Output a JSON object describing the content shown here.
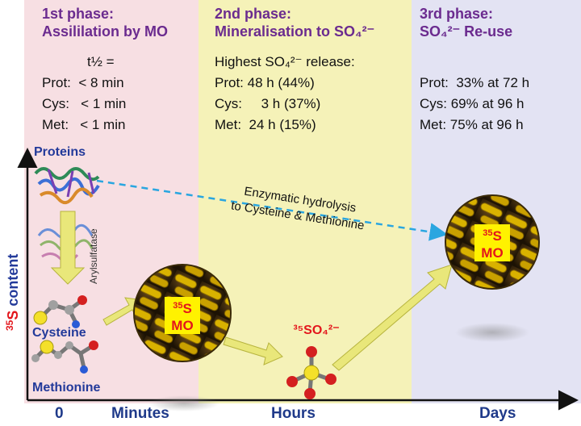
{
  "colors": {
    "phase1_bg": "#f7dfe3",
    "phase2_bg": "#f5f2b8",
    "phase3_bg": "#e3e3f3",
    "title_purple": "#6b2b8f",
    "label_blue": "#233a9a",
    "arrow_yellow": "#e9e77a",
    "hydrolysis_arrow": "#2aa6e0",
    "mo_yellow": "#fff200",
    "mo_red": "#e3161c"
  },
  "phases": [
    {
      "title_line1": "1st phase:",
      "title_line2": "Assililation by MO",
      "lines": [
        "t½ =",
        "Prot:  < 8 min",
        "Cys:   < 1 min",
        "Met:   < 1 min"
      ]
    },
    {
      "title_line1": "2nd phase:",
      "title_line2": "Mineralisation to SO₄²⁻",
      "lines": [
        "Highest SO₄²⁻ release:",
        "Prot: 48 h (44%)",
        "Cys:     3 h (37%)",
        "Met:  24 h (15%)"
      ]
    },
    {
      "title_line1": "3rd phase:",
      "title_line2": "SO₄²⁻ Re-use",
      "lines": [
        "Prot:  33% at 72 h",
        "Cys: 69% at 96 h",
        "Met: 75% at 96 h"
      ]
    }
  ],
  "axis": {
    "y_label_prefix": "35",
    "y_label_symbol": "S",
    "y_label_suffix": " content",
    "ticks": [
      "0",
      "Minutes",
      "Hours",
      "Days"
    ]
  },
  "compounds": {
    "proteins": "Proteins",
    "cysteine": "Cysteine",
    "methionine": "Methionine",
    "arylsulfatase": "Arylsulfatase",
    "sulfate_label": "³⁵SO₄²⁻"
  },
  "mo_label": {
    "isotope": "35",
    "element": "S",
    "organism": "MO"
  },
  "hydrolysis": {
    "line1": "Enzymatic hydrolysis",
    "line2": "to Cysteine & Methionine"
  },
  "icons": [
    "protein-structure-icon",
    "cysteine-molecule-icon",
    "methionine-molecule-icon",
    "microorganism-sphere-icon",
    "sulfate-molecule-icon"
  ]
}
